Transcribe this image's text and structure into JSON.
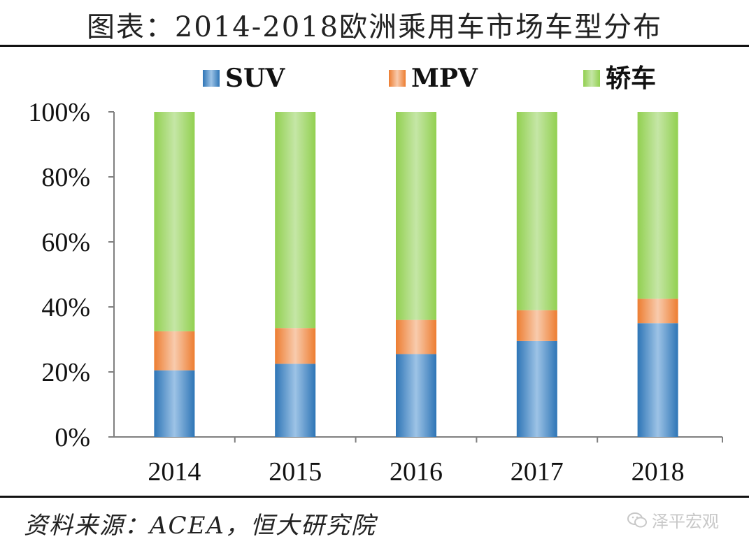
{
  "title": "图表：2014-2018欧洲乘用车市场车型分布",
  "source": "资料来源：ACEA，恒大研究院",
  "watermark": "泽平宏观",
  "colors": {
    "suv": "#2e75b6",
    "mpv": "#ed7d31",
    "sedan": "#92d050",
    "axis": "#7f7f7f"
  },
  "chart_data": {
    "type": "bar",
    "stacked": true,
    "categories": [
      "2014",
      "2015",
      "2016",
      "2017",
      "2018"
    ],
    "series": [
      {
        "name": "SUV",
        "values": [
          20.5,
          22.5,
          25.5,
          29.5,
          35.0
        ]
      },
      {
        "name": "MPV",
        "values": [
          12.0,
          11.0,
          10.5,
          9.5,
          7.5
        ]
      },
      {
        "name": "轿车",
        "values": [
          67.5,
          66.5,
          64.0,
          61.0,
          57.5
        ]
      }
    ],
    "ylim": [
      0,
      100
    ],
    "yticks": [
      "0%",
      "20%",
      "40%",
      "60%",
      "80%",
      "100%"
    ],
    "legend_position": "top",
    "grid": false
  }
}
